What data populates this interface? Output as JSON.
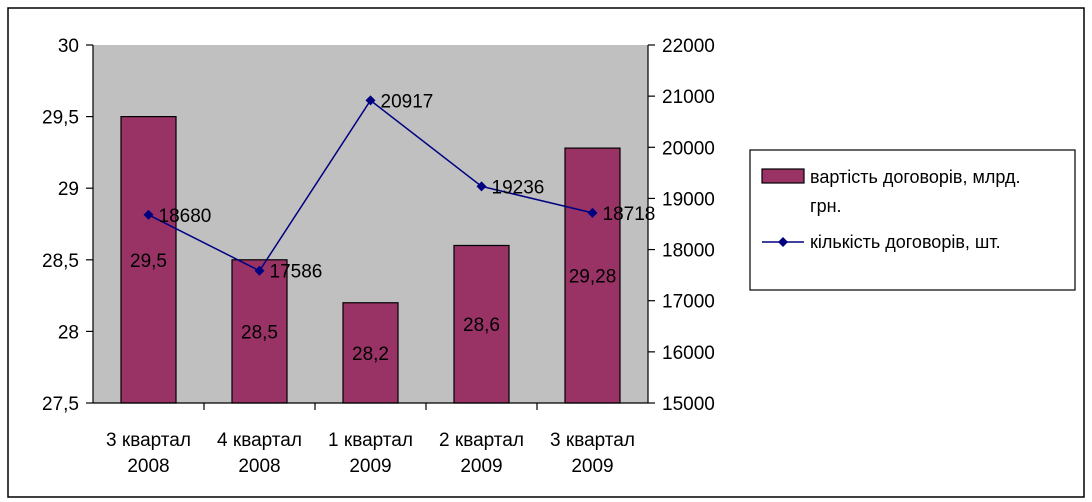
{
  "chart_data": {
    "type": "bar+line",
    "categories": [
      [
        "3 квартал",
        "2008"
      ],
      [
        "4 квартал",
        "2008"
      ],
      [
        "1 квартал",
        "2009"
      ],
      [
        "2 квартал",
        "2009"
      ],
      [
        "3 квартал",
        "2009"
      ]
    ],
    "series": [
      {
        "name": "вартість договорів, млрд. грн.",
        "legend_lines": [
          "вартість договорів, млрд.",
          "грн."
        ],
        "type": "bar",
        "axis": "left",
        "values": [
          29.5,
          28.5,
          28.2,
          28.6,
          29.28
        ],
        "labels": [
          "29,5",
          "28,5",
          "28,2",
          "28,6",
          "29,28"
        ],
        "color": "#993366"
      },
      {
        "name": "кількість договорів, шт.",
        "legend_lines": [
          "кількість договорів, шт."
        ],
        "type": "line",
        "axis": "right",
        "values": [
          18680,
          17586,
          20917,
          19236,
          18718
        ],
        "labels": [
          "18680",
          "17586",
          "20917",
          "19236",
          "18718"
        ],
        "color": "#000080"
      }
    ],
    "y_left": {
      "min": 27.5,
      "max": 30,
      "step": 0.5,
      "tick_labels": [
        "27,5",
        "28",
        "28,5",
        "29",
        "29,5",
        "30"
      ]
    },
    "y_right": {
      "min": 15000,
      "max": 22000,
      "step": 1000,
      "tick_labels": [
        "15000",
        "16000",
        "17000",
        "18000",
        "19000",
        "20000",
        "21000",
        "22000"
      ]
    },
    "grid": false,
    "plot_background": "#c0c0c0",
    "legend_position": "right"
  }
}
